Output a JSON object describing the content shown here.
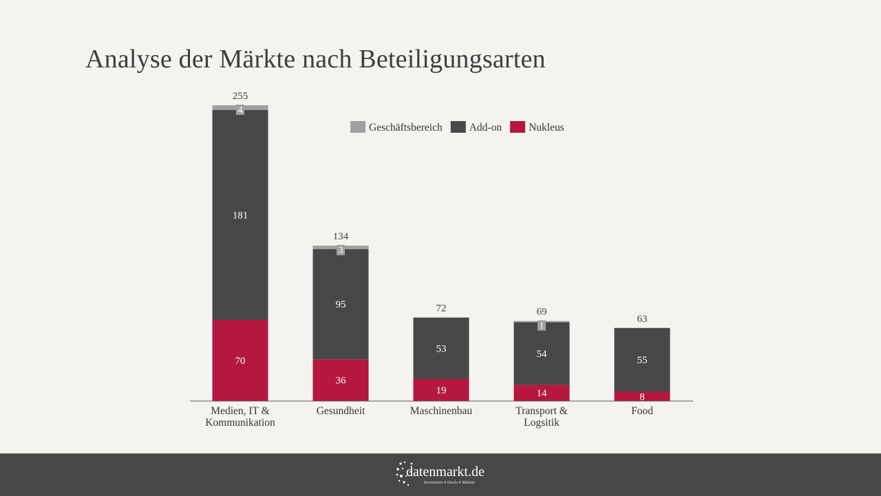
{
  "slide": {
    "title": "Analyse der Märkte nach Beteiligungsarten"
  },
  "chart_data": {
    "type": "bar",
    "stacked": true,
    "categories": [
      [
        "Medien, IT &",
        "Kommunikation"
      ],
      [
        "Gesundheit"
      ],
      [
        "Maschinenbau"
      ],
      [
        "Transport &",
        "Logsitik"
      ],
      [
        "Food"
      ]
    ],
    "series": [
      {
        "name": "Nukleus",
        "color": "#b5173f",
        "values": [
          70,
          36,
          19,
          14,
          8
        ]
      },
      {
        "name": "Add-on",
        "color": "#474747",
        "values": [
          181,
          95,
          53,
          54,
          55
        ]
      },
      {
        "name": "Geschäftsbereich",
        "color": "#a0a0a0",
        "values": [
          4,
          3,
          0,
          1,
          0
        ]
      }
    ],
    "totals": [
      255,
      134,
      72,
      69,
      63
    ],
    "legend_order": [
      "Geschäftsbereich",
      "Add-on",
      "Nukleus"
    ],
    "legend_position": "top-center",
    "ylim": [
      0,
      255
    ],
    "grid": false,
    "xlabel": "",
    "ylabel": ""
  },
  "footer": {
    "logo_text": "datenmarkt.de",
    "logo_tagline": "Investoren # Deals # Märkte"
  }
}
